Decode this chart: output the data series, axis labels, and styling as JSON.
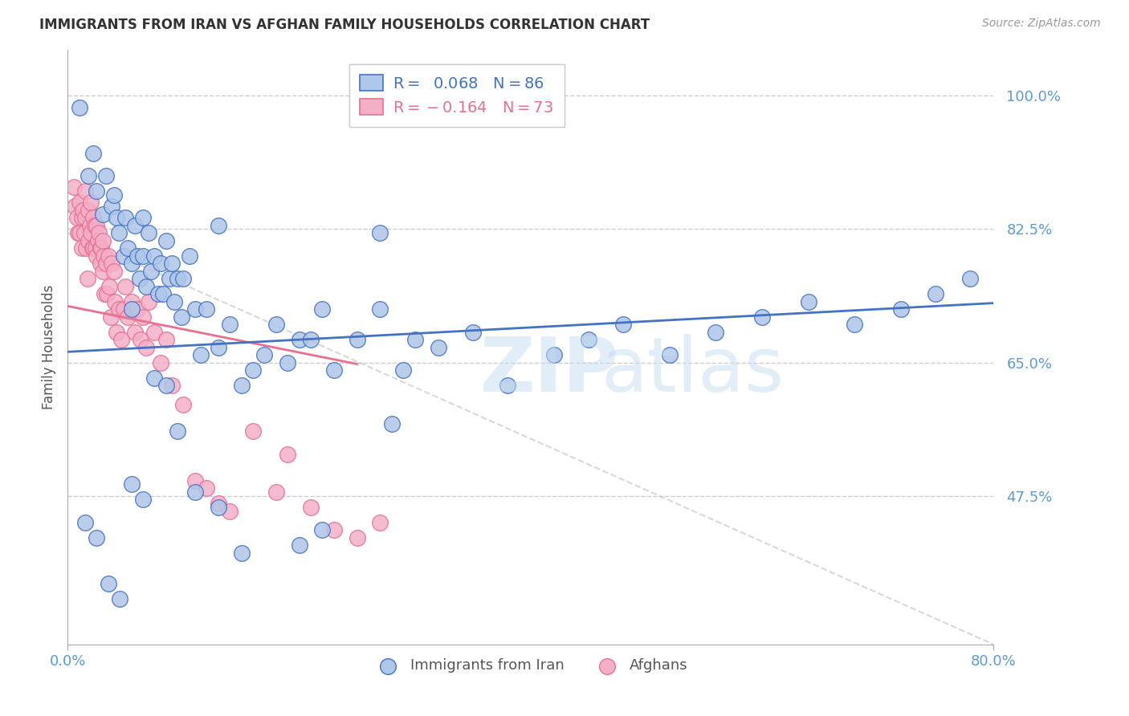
{
  "title": "IMMIGRANTS FROM IRAN VS AFGHAN FAMILY HOUSEHOLDS CORRELATION CHART",
  "source": "Source: ZipAtlas.com",
  "ylabel": "Family Households",
  "y_tick_labels": [
    "100.0%",
    "82.5%",
    "65.0%",
    "47.5%"
  ],
  "y_tick_values": [
    1.0,
    0.825,
    0.65,
    0.475
  ],
  "xlim": [
    0.0,
    0.8
  ],
  "ylim": [
    0.28,
    1.06
  ],
  "color_iran": "#aec6e8",
  "color_afghan": "#f4afc8",
  "color_iran_edge": "#4472c4",
  "color_afghan_edge": "#e87090",
  "color_iran_line": "#4472c4",
  "color_afghan_line": "#e87090",
  "color_axis_labels": "#5b9bd5",
  "iran_scatter_x": [
    0.01,
    0.018,
    0.022,
    0.025,
    0.03,
    0.033,
    0.038,
    0.04,
    0.042,
    0.044,
    0.048,
    0.05,
    0.052,
    0.055,
    0.055,
    0.058,
    0.06,
    0.062,
    0.065,
    0.065,
    0.068,
    0.07,
    0.072,
    0.075,
    0.078,
    0.08,
    0.082,
    0.085,
    0.088,
    0.09,
    0.092,
    0.095,
    0.098,
    0.1,
    0.105,
    0.11,
    0.115,
    0.12,
    0.13,
    0.14,
    0.15,
    0.16,
    0.17,
    0.18,
    0.19,
    0.2,
    0.21,
    0.22,
    0.23,
    0.25,
    0.27,
    0.29,
    0.32,
    0.35,
    0.38,
    0.42,
    0.45,
    0.48,
    0.52,
    0.56,
    0.6,
    0.64,
    0.68,
    0.72,
    0.75,
    0.78,
    0.015,
    0.025,
    0.035,
    0.045,
    0.055,
    0.065,
    0.075,
    0.085,
    0.095,
    0.11,
    0.13,
    0.15,
    0.2,
    0.28,
    0.22,
    0.3,
    0.13,
    0.27
  ],
  "iran_scatter_y": [
    0.985,
    0.895,
    0.925,
    0.875,
    0.845,
    0.895,
    0.855,
    0.87,
    0.84,
    0.82,
    0.79,
    0.84,
    0.8,
    0.78,
    0.72,
    0.83,
    0.79,
    0.76,
    0.84,
    0.79,
    0.75,
    0.82,
    0.77,
    0.79,
    0.74,
    0.78,
    0.74,
    0.81,
    0.76,
    0.78,
    0.73,
    0.76,
    0.71,
    0.76,
    0.79,
    0.72,
    0.66,
    0.72,
    0.67,
    0.7,
    0.62,
    0.64,
    0.66,
    0.7,
    0.65,
    0.68,
    0.68,
    0.72,
    0.64,
    0.68,
    0.72,
    0.64,
    0.67,
    0.69,
    0.62,
    0.66,
    0.68,
    0.7,
    0.66,
    0.69,
    0.71,
    0.73,
    0.7,
    0.72,
    0.74,
    0.76,
    0.44,
    0.42,
    0.36,
    0.34,
    0.49,
    0.47,
    0.63,
    0.62,
    0.56,
    0.48,
    0.46,
    0.4,
    0.41,
    0.57,
    0.43,
    0.68,
    0.83,
    0.82
  ],
  "afghan_scatter_x": [
    0.005,
    0.006,
    0.008,
    0.009,
    0.01,
    0.01,
    0.012,
    0.012,
    0.013,
    0.014,
    0.015,
    0.015,
    0.016,
    0.017,
    0.018,
    0.018,
    0.019,
    0.02,
    0.02,
    0.021,
    0.022,
    0.022,
    0.023,
    0.024,
    0.025,
    0.025,
    0.026,
    0.027,
    0.028,
    0.028,
    0.029,
    0.03,
    0.03,
    0.031,
    0.032,
    0.033,
    0.034,
    0.035,
    0.036,
    0.037,
    0.038,
    0.04,
    0.041,
    0.042,
    0.044,
    0.046,
    0.048,
    0.05,
    0.052,
    0.055,
    0.058,
    0.06,
    0.063,
    0.065,
    0.068,
    0.07,
    0.075,
    0.08,
    0.085,
    0.09,
    0.1,
    0.11,
    0.12,
    0.13,
    0.14,
    0.16,
    0.18,
    0.19,
    0.21,
    0.23,
    0.25,
    0.27
  ],
  "afghan_scatter_y": [
    0.88,
    0.855,
    0.84,
    0.82,
    0.86,
    0.82,
    0.84,
    0.8,
    0.85,
    0.82,
    0.875,
    0.84,
    0.8,
    0.76,
    0.85,
    0.81,
    0.83,
    0.86,
    0.82,
    0.8,
    0.84,
    0.8,
    0.83,
    0.8,
    0.83,
    0.79,
    0.81,
    0.82,
    0.8,
    0.78,
    0.8,
    0.81,
    0.77,
    0.79,
    0.74,
    0.78,
    0.74,
    0.79,
    0.75,
    0.71,
    0.78,
    0.77,
    0.73,
    0.69,
    0.72,
    0.68,
    0.72,
    0.75,
    0.71,
    0.73,
    0.69,
    0.72,
    0.68,
    0.71,
    0.67,
    0.73,
    0.69,
    0.65,
    0.68,
    0.62,
    0.595,
    0.495,
    0.485,
    0.465,
    0.455,
    0.56,
    0.48,
    0.53,
    0.46,
    0.43,
    0.42,
    0.44
  ],
  "iran_line_x": [
    0.0,
    0.8
  ],
  "iran_line_y": [
    0.664,
    0.728
  ],
  "afghan_line_x": [
    0.0,
    0.25
  ],
  "afghan_line_y": [
    0.724,
    0.648
  ],
  "afghan_dashed_line_x": [
    0.0,
    0.8
  ],
  "afghan_dashed_line_y": [
    0.82,
    0.28
  ]
}
